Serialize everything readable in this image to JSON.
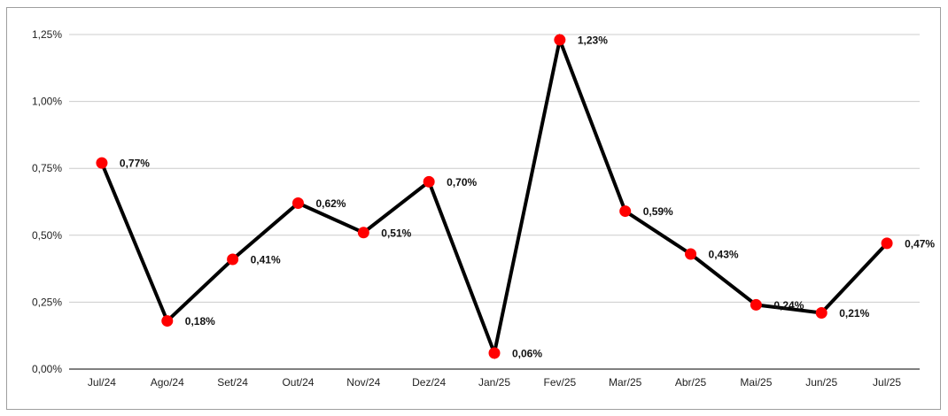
{
  "chart_data": {
    "type": "line",
    "title": "",
    "xlabel": "",
    "ylabel": "",
    "categories": [
      "Jul/24",
      "Ago/24",
      "Set/24",
      "Out/24",
      "Nov/24",
      "Dez/24",
      "Jan/25",
      "Fev/25",
      "Mar/25",
      "Abr/25",
      "Mai/25",
      "Jun/25",
      "Jul/25"
    ],
    "series": [
      {
        "values": [
          0.77,
          0.18,
          0.41,
          0.62,
          0.51,
          0.7,
          0.06,
          1.23,
          0.59,
          0.43,
          0.24,
          0.21,
          0.47
        ],
        "data_labels": [
          "0,77%",
          "0,18%",
          "0,41%",
          "0,62%",
          "0,51%",
          "0,70%",
          "0,06%",
          "1,23%",
          "0,59%",
          "0,43%",
          "0,24%",
          "0,21%",
          "0,47%"
        ],
        "line_color": "#000000",
        "marker_color": "#ff0000"
      }
    ],
    "ylim": [
      0,
      1.25
    ],
    "yticks": [
      0,
      0.25,
      0.5,
      0.75,
      1.0,
      1.25
    ],
    "ytick_labels": [
      "0,00%",
      "0,25%",
      "0,50%",
      "0,75%",
      "1,00%",
      "1,25%"
    ],
    "grid": true,
    "legend": "none"
  }
}
